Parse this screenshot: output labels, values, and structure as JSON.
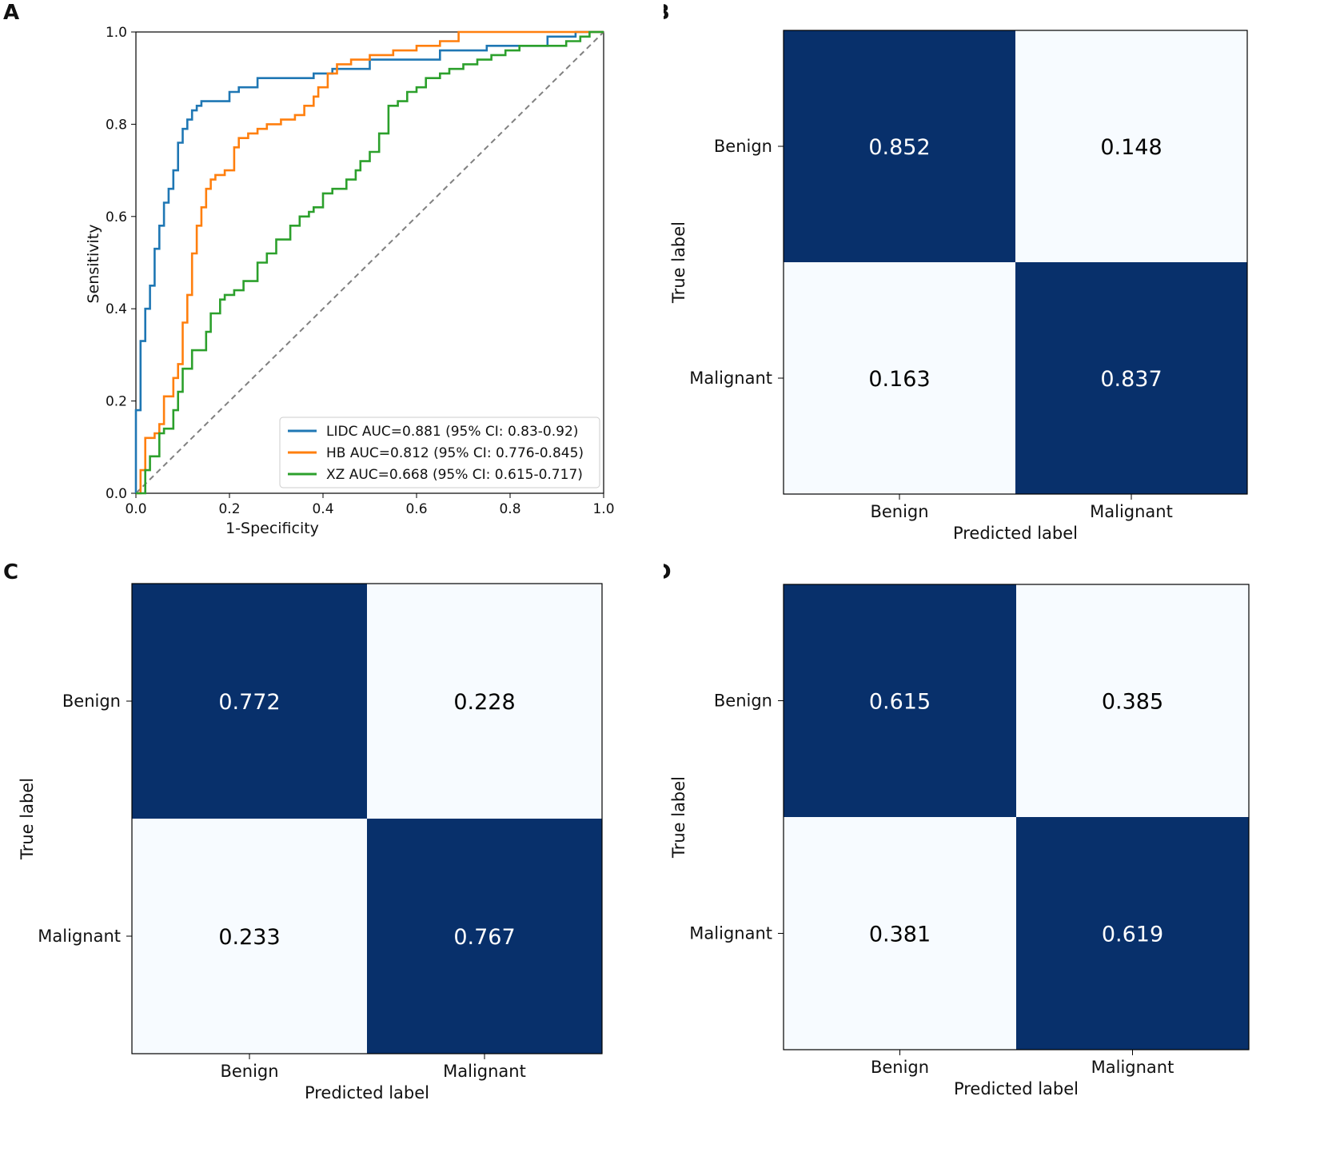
{
  "panels": {
    "A": "A",
    "B": "B",
    "C": "C",
    "D": "D"
  },
  "colors": {
    "dark": "#08306b",
    "light": "#f7fbff",
    "lidc": "#1f77b4",
    "hb": "#ff7f0e",
    "xz": "#2ca02c",
    "diag": "#808080"
  },
  "chart_data": [
    {
      "panel": "A",
      "type": "line",
      "title": "",
      "xlabel": "1-Specificity",
      "ylabel": "Sensitivity",
      "xlim": [
        0,
        1
      ],
      "ylim": [
        0,
        1
      ],
      "xticks": [
        "0.0",
        "0.2",
        "0.4",
        "0.6",
        "0.8",
        "1.0"
      ],
      "yticks": [
        "0.0",
        "0.2",
        "0.4",
        "0.6",
        "0.8",
        "1.0"
      ],
      "legend_position": "lower-right",
      "reference_line": "diagonal dashed",
      "series": [
        {
          "name": "LIDC AUC=0.881 (95% CI: 0.83-0.92)",
          "color": "#1f77b4",
          "x": [
            0,
            0,
            0.01,
            0.01,
            0.02,
            0.02,
            0.03,
            0.03,
            0.04,
            0.04,
            0.05,
            0.05,
            0.06,
            0.06,
            0.07,
            0.07,
            0.08,
            0.08,
            0.09,
            0.09,
            0.1,
            0.1,
            0.11,
            0.11,
            0.12,
            0.12,
            0.13,
            0.13,
            0.14,
            0.14,
            0.2,
            0.2,
            0.22,
            0.22,
            0.26,
            0.26,
            0.38,
            0.38,
            0.42,
            0.42,
            0.5,
            0.5,
            0.65,
            0.65,
            0.75,
            0.75,
            0.88,
            0.88,
            0.94,
            0.94,
            1.0
          ],
          "y": [
            0,
            0.18,
            0.2,
            0.33,
            0.38,
            0.4,
            0.43,
            0.45,
            0.48,
            0.53,
            0.55,
            0.58,
            0.6,
            0.63,
            0.64,
            0.66,
            0.68,
            0.7,
            0.74,
            0.76,
            0.78,
            0.79,
            0.8,
            0.81,
            0.82,
            0.83,
            0.84,
            0.84,
            0.84,
            0.85,
            0.85,
            0.87,
            0.87,
            0.88,
            0.89,
            0.9,
            0.9,
            0.91,
            0.91,
            0.92,
            0.93,
            0.94,
            0.95,
            0.96,
            0.96,
            0.97,
            0.98,
            0.99,
            0.99,
            1.0,
            1.0
          ]
        },
        {
          "name": "HB AUC=0.812 (95% CI: 0.776-0.845)",
          "color": "#ff7f0e",
          "x": [
            0,
            0.01,
            0.01,
            0.02,
            0.02,
            0.04,
            0.05,
            0.06,
            0.08,
            0.09,
            0.1,
            0.11,
            0.12,
            0.13,
            0.14,
            0.15,
            0.16,
            0.17,
            0.19,
            0.21,
            0.22,
            0.24,
            0.26,
            0.28,
            0.31,
            0.34,
            0.36,
            0.38,
            0.39,
            0.41,
            0.43,
            0.46,
            0.5,
            0.55,
            0.6,
            0.65,
            0.69,
            0.75,
            0.8,
            0.9,
            1.0
          ],
          "y": [
            0,
            0.03,
            0.05,
            0.11,
            0.12,
            0.13,
            0.15,
            0.21,
            0.25,
            0.28,
            0.37,
            0.43,
            0.52,
            0.58,
            0.62,
            0.66,
            0.68,
            0.69,
            0.7,
            0.75,
            0.77,
            0.78,
            0.79,
            0.8,
            0.81,
            0.82,
            0.84,
            0.86,
            0.88,
            0.91,
            0.93,
            0.94,
            0.95,
            0.96,
            0.97,
            0.98,
            1.0,
            1.0,
            1.0,
            1.0,
            1.0
          ]
        },
        {
          "name": "XZ AUC=0.668 (95% CI: 0.615-0.717)",
          "color": "#2ca02c",
          "x": [
            0,
            0.02,
            0.02,
            0.03,
            0.05,
            0.06,
            0.08,
            0.09,
            0.1,
            0.12,
            0.13,
            0.15,
            0.16,
            0.18,
            0.19,
            0.21,
            0.23,
            0.26,
            0.28,
            0.3,
            0.33,
            0.35,
            0.37,
            0.38,
            0.4,
            0.42,
            0.45,
            0.47,
            0.48,
            0.5,
            0.52,
            0.54,
            0.56,
            0.58,
            0.6,
            0.62,
            0.65,
            0.67,
            0.7,
            0.73,
            0.76,
            0.79,
            0.82,
            0.85,
            0.88,
            0.9,
            0.92,
            0.95,
            0.97,
            1.0
          ],
          "y": [
            0,
            0.01,
            0.05,
            0.08,
            0.13,
            0.14,
            0.18,
            0.22,
            0.27,
            0.31,
            0.31,
            0.35,
            0.39,
            0.42,
            0.43,
            0.44,
            0.46,
            0.5,
            0.52,
            0.55,
            0.58,
            0.6,
            0.61,
            0.62,
            0.65,
            0.66,
            0.68,
            0.7,
            0.72,
            0.74,
            0.78,
            0.84,
            0.85,
            0.87,
            0.88,
            0.9,
            0.91,
            0.92,
            0.93,
            0.94,
            0.95,
            0.96,
            0.97,
            0.97,
            0.97,
            0.97,
            0.98,
            0.99,
            1.0,
            1.0
          ]
        }
      ]
    },
    {
      "panel": "B",
      "type": "heatmap",
      "xlabel": "Predicted label",
      "ylabel": "True label",
      "labels": [
        "Benign",
        "Malignant"
      ],
      "matrix": [
        [
          0.852,
          0.148
        ],
        [
          0.163,
          0.837
        ]
      ]
    },
    {
      "panel": "C",
      "type": "heatmap",
      "xlabel": "Predicted label",
      "ylabel": "True label",
      "labels": [
        "Benign",
        "Malignant"
      ],
      "matrix": [
        [
          0.772,
          0.228
        ],
        [
          0.233,
          0.767
        ]
      ]
    },
    {
      "panel": "D",
      "type": "heatmap",
      "xlabel": "Predicted label",
      "ylabel": "True label",
      "labels": [
        "Benign",
        "Malignant"
      ],
      "matrix": [
        [
          0.615,
          0.385
        ],
        [
          0.381,
          0.619
        ]
      ]
    }
  ]
}
